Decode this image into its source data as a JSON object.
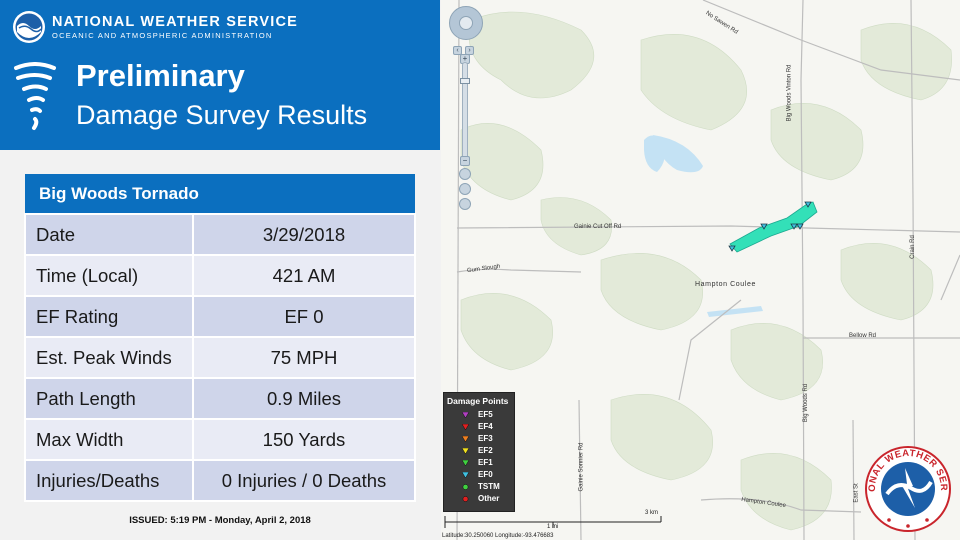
{
  "header": {
    "agency": "NATIONAL WEATHER SERVICE",
    "subagency": "OCEANIC AND ATMOSPHERIC ADMINISTRATION",
    "title_line1": "Preliminary",
    "title_line2": "Damage Survey Results"
  },
  "survey": {
    "name": "Big Woods Tornado",
    "rows": [
      {
        "label": "Date",
        "value": "3/29/2018"
      },
      {
        "label": "Time (Local)",
        "value": "421 AM"
      },
      {
        "label": "EF Rating",
        "value": "EF 0"
      },
      {
        "label": "Est. Peak Winds",
        "value": "75 MPH"
      },
      {
        "label": "Path Length",
        "value": "0.9 Miles"
      },
      {
        "label": "Max Width",
        "value": "150 Yards"
      },
      {
        "label": "Injuries/Deaths",
        "value": "0 Injuries / 0 Deaths"
      }
    ]
  },
  "issued": "ISSUED: 5:19 PM - Monday, April 2, 2018",
  "map": {
    "road_labels": {
      "north_sawen": "No Sawen Rd",
      "big_woods_vinton": "Big Woods Vinton Rd",
      "gainie_cut_off": "Gainie Cut Off Rd",
      "gum_slough": "Gum Slough",
      "crain": "Crain Rd",
      "bellow": "Bellow Rd",
      "big_woods": "Big Woods Rd",
      "gainie_sonnier": "Gainie Sonnier Rd",
      "east_st": "East St",
      "hampton_coulee_road": "Hampton Coulee"
    },
    "place_label": "Hampton Coulee",
    "legend": {
      "title": "Damage Points",
      "items": [
        {
          "label": "EF5",
          "color": "#b040c0",
          "shape": "triangle"
        },
        {
          "label": "EF4",
          "color": "#e02020",
          "shape": "triangle"
        },
        {
          "label": "EF3",
          "color": "#f08020",
          "shape": "triangle"
        },
        {
          "label": "EF2",
          "color": "#f0e020",
          "shape": "triangle"
        },
        {
          "label": "EF1",
          "color": "#40d040",
          "shape": "triangle"
        },
        {
          "label": "EF0",
          "color": "#40c0e0",
          "shape": "triangle"
        },
        {
          "label": "TSTM",
          "color": "#40d040",
          "shape": "circle"
        },
        {
          "label": "Other",
          "color": "#e02020",
          "shape": "circle"
        }
      ]
    },
    "scale": {
      "mi_label": "1 mi",
      "km_label": "3 km"
    },
    "coordinates": "Latitude:30.250060   Longitude:-93.476683",
    "path_color": "#33e0b8",
    "water_color": "#c4e2f4"
  },
  "colors": {
    "banner": "#0b6fbf",
    "row_dark": "#cfd5ea",
    "row_light": "#e9ebf5"
  }
}
